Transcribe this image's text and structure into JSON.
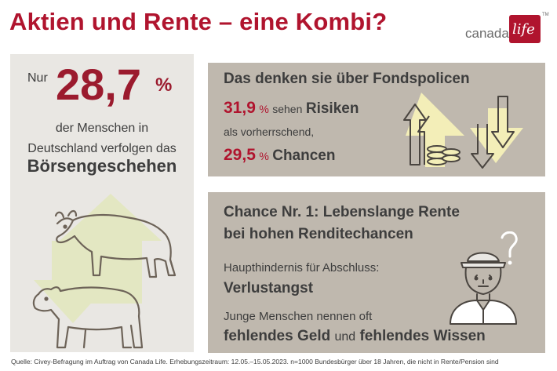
{
  "title": "Aktien und Rente – eine Kombi?",
  "logo": {
    "text": "canada",
    "box_text": "life",
    "tm": "TM"
  },
  "left_panel": {
    "prefix": "Nur",
    "percent_value": "28,7",
    "percent_sign": "%",
    "line1": "der Menschen in",
    "line2": "Deutschland verfolgen das",
    "headline": "Börsengeschehen",
    "illustration": [
      "bull-icon",
      "bear-icon",
      "arrow-up-icon",
      "arrow-down-icon"
    ]
  },
  "fonds_panel": {
    "heading": "Das denken sie über Fondspolicen",
    "stat1": {
      "value": "31,9",
      "unit": "%",
      "text_pre": "sehen",
      "text_bold": "Risiken",
      "line2": "als vorherrschend,"
    },
    "stat2": {
      "value": "29,5",
      "unit": "%",
      "text_bold": "Chancen"
    },
    "illustration": [
      "arrow-up-coins-icon",
      "arrow-down-icon"
    ]
  },
  "chance_panel": {
    "heading_line1": "Chance Nr. 1: Lebenslange Rente",
    "heading_line2": "bei hohen Renditechancen",
    "obstacle_label": "Haupthindernis für Abschluss:",
    "obstacle_value": "Verlustangst",
    "young_label": "Junge Menschen nennen oft",
    "young_item1": "fehlendes Geld",
    "young_and": "und",
    "young_item2": "fehlendes Wissen",
    "illustration": [
      "person-question-icon"
    ]
  },
  "colors": {
    "accent": "#b0142e",
    "panel_light": "#e9e7e3",
    "panel_dark": "#bfb8ae",
    "highlight": "#f3eeb8"
  },
  "source": "Quelle: Civey-Befragung im Auftrag von Canada Life. Erhebungszeitraum: 12.05.–15.05.2023. n=1000 Bundesbürger über 18 Jahren, die nicht in Rente/Pension sind"
}
